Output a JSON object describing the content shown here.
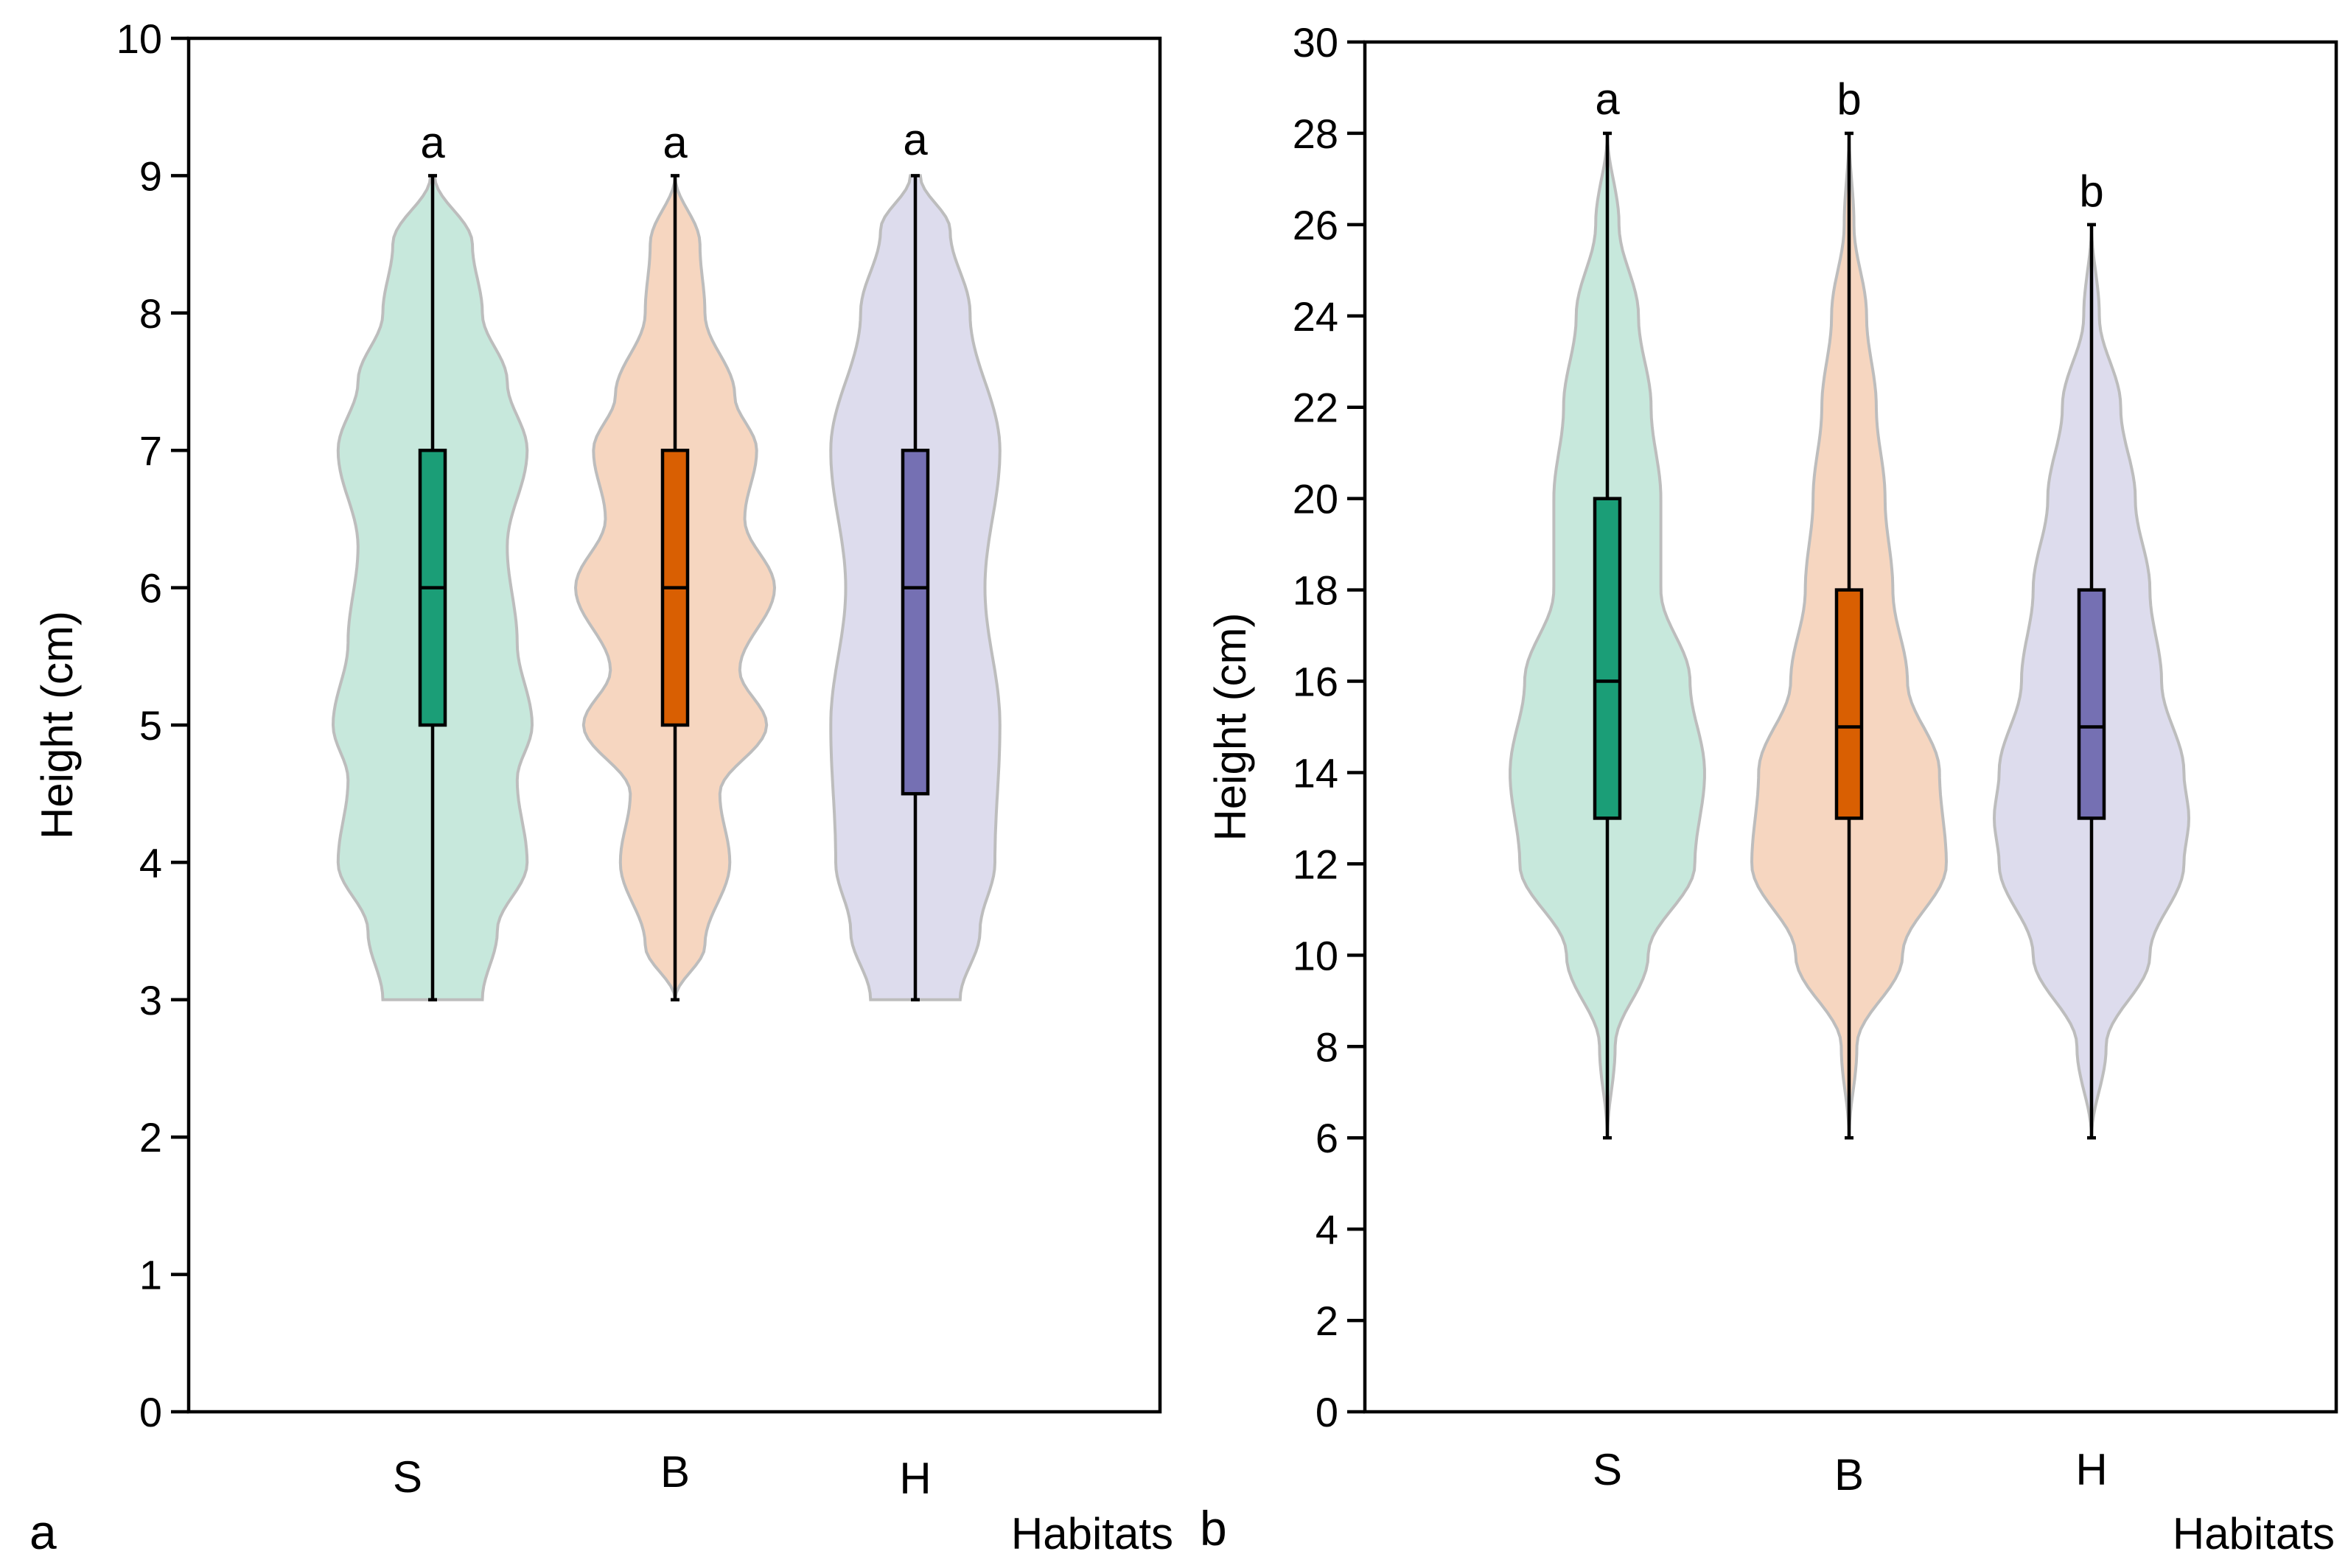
{
  "chart_data": [
    {
      "type": "violin",
      "panel_label": "a",
      "ylabel": "Height (cm)",
      "xlabel": "Habitats",
      "ylim": [
        0,
        10
      ],
      "yticks": [
        0,
        1,
        2,
        3,
        4,
        5,
        6,
        7,
        8,
        9,
        10
      ],
      "categories": [
        "S",
        "B",
        "H"
      ],
      "series": [
        {
          "name": "S",
          "min": 3,
          "q1": 5,
          "median": 6,
          "q3": 7,
          "max": 9,
          "significance": "a",
          "fill_color": "#c7e8dc",
          "box_color": "#1b9e77",
          "density": [
            [
              3,
              0.5
            ],
            [
              3.5,
              0.65
            ],
            [
              4,
              0.95
            ],
            [
              4.6,
              0.85
            ],
            [
              5,
              1.0
            ],
            [
              5.6,
              0.85
            ],
            [
              6.3,
              0.75
            ],
            [
              7,
              0.95
            ],
            [
              7.5,
              0.75
            ],
            [
              8,
              0.5
            ],
            [
              8.5,
              0.4
            ],
            [
              9,
              0.02
            ]
          ]
        },
        {
          "name": "B",
          "min": 3,
          "q1": 5,
          "median": 6,
          "q3": 7,
          "max": 9,
          "significance": "a",
          "fill_color": "#f6d6c0",
          "box_color": "#d95f02",
          "density": [
            [
              3,
              0.0
            ],
            [
              3.4,
              0.3
            ],
            [
              4,
              0.55
            ],
            [
              4.5,
              0.45
            ],
            [
              5,
              0.92
            ],
            [
              5.4,
              0.65
            ],
            [
              6,
              1.0
            ],
            [
              6.5,
              0.7
            ],
            [
              7,
              0.82
            ],
            [
              7.4,
              0.6
            ],
            [
              8,
              0.3
            ],
            [
              8.5,
              0.25
            ],
            [
              9,
              0.0
            ]
          ]
        },
        {
          "name": "H",
          "min": 3,
          "q1": 4.5,
          "median": 6,
          "q3": 7,
          "max": 9,
          "significance": "a",
          "fill_color": "#dddced",
          "box_color": "#7570b3",
          "density": [
            [
              3,
              0.45
            ],
            [
              3.5,
              0.65
            ],
            [
              4,
              0.8
            ],
            [
              5,
              0.85
            ],
            [
              6,
              0.7
            ],
            [
              7,
              0.85
            ],
            [
              8,
              0.55
            ],
            [
              8.6,
              0.35
            ],
            [
              9,
              0.05
            ]
          ]
        }
      ]
    },
    {
      "type": "violin",
      "panel_label": "b",
      "ylabel": "Height (cm)",
      "xlabel": "Habitats",
      "ylim": [
        0,
        30
      ],
      "yticks": [
        0,
        2,
        4,
        6,
        8,
        10,
        12,
        14,
        16,
        18,
        20,
        22,
        24,
        26,
        28,
        30
      ],
      "categories": [
        "S",
        "B",
        "H"
      ],
      "series": [
        {
          "name": "S",
          "min": 6,
          "q1": 13,
          "median": 16,
          "q3": 20,
          "max": 28,
          "significance": "a",
          "fill_color": "#c7e8dc",
          "box_color": "#1b9e77",
          "density": [
            [
              6,
              0.0
            ],
            [
              8,
              0.08
            ],
            [
              10,
              0.42
            ],
            [
              12,
              0.9
            ],
            [
              14,
              1.0
            ],
            [
              16,
              0.85
            ],
            [
              18,
              0.55
            ],
            [
              20,
              0.55
            ],
            [
              22,
              0.45
            ],
            [
              24,
              0.32
            ],
            [
              26,
              0.12
            ],
            [
              28,
              0.0
            ]
          ]
        },
        {
          "name": "B",
          "min": 6,
          "q1": 13,
          "median": 15,
          "q3": 18,
          "max": 28,
          "significance": "b",
          "fill_color": "#f6d6c0",
          "box_color": "#d95f02",
          "density": [
            [
              6,
              0.0
            ],
            [
              8,
              0.08
            ],
            [
              10,
              0.55
            ],
            [
              12,
              1.0
            ],
            [
              14,
              0.93
            ],
            [
              16,
              0.6
            ],
            [
              18,
              0.45
            ],
            [
              20,
              0.37
            ],
            [
              22,
              0.28
            ],
            [
              24,
              0.18
            ],
            [
              26,
              0.05
            ],
            [
              28,
              0.0
            ]
          ]
        },
        {
          "name": "H",
          "min": 6,
          "q1": 13,
          "median": 15,
          "q3": 18,
          "max": 26,
          "significance": "b",
          "fill_color": "#dddced",
          "box_color": "#7570b3",
          "density": [
            [
              6,
              0.0
            ],
            [
              8,
              0.15
            ],
            [
              10,
              0.6
            ],
            [
              12,
              0.95
            ],
            [
              13,
              1.0
            ],
            [
              14,
              0.95
            ],
            [
              16,
              0.72
            ],
            [
              18,
              0.6
            ],
            [
              20,
              0.45
            ],
            [
              22,
              0.3
            ],
            [
              24,
              0.08
            ],
            [
              26,
              0.0
            ]
          ]
        }
      ]
    }
  ]
}
